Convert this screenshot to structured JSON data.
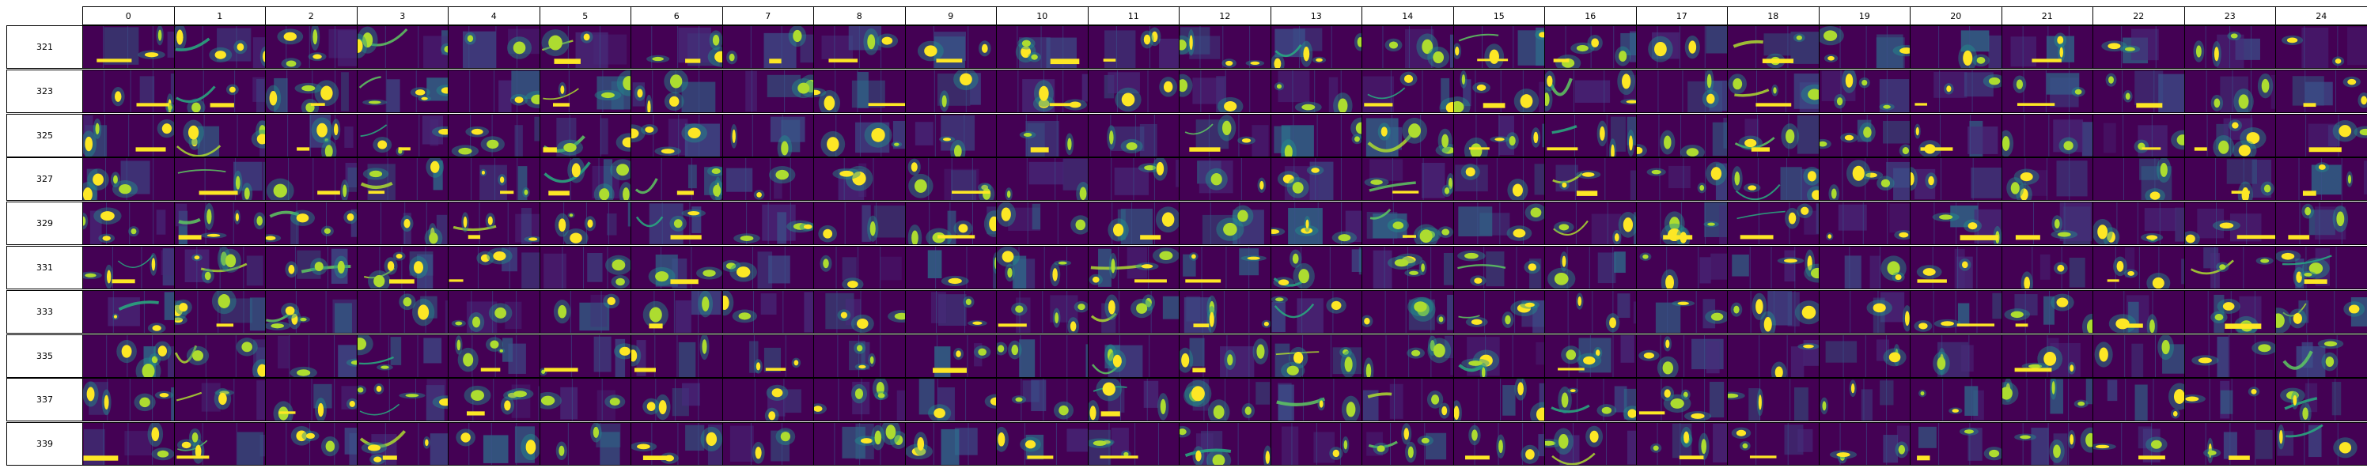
{
  "columns": [
    "0",
    "1",
    "2",
    "3",
    "4",
    "5",
    "6",
    "7",
    "8",
    "9",
    "10",
    "11",
    "12",
    "13",
    "14",
    "15",
    "16",
    "17",
    "18",
    "19",
    "20",
    "21",
    "22",
    "23",
    "24"
  ],
  "rows": [
    "321",
    "323",
    "325",
    "327",
    "329",
    "331",
    "333",
    "335",
    "337",
    "339"
  ],
  "colormap": {
    "name": "viridis",
    "background": "#440154",
    "stops": [
      "#440154",
      "#472c7a",
      "#3b528b",
      "#2c728e",
      "#21918c",
      "#28ae80",
      "#5ec962",
      "#addc30",
      "#fde725"
    ]
  }
}
